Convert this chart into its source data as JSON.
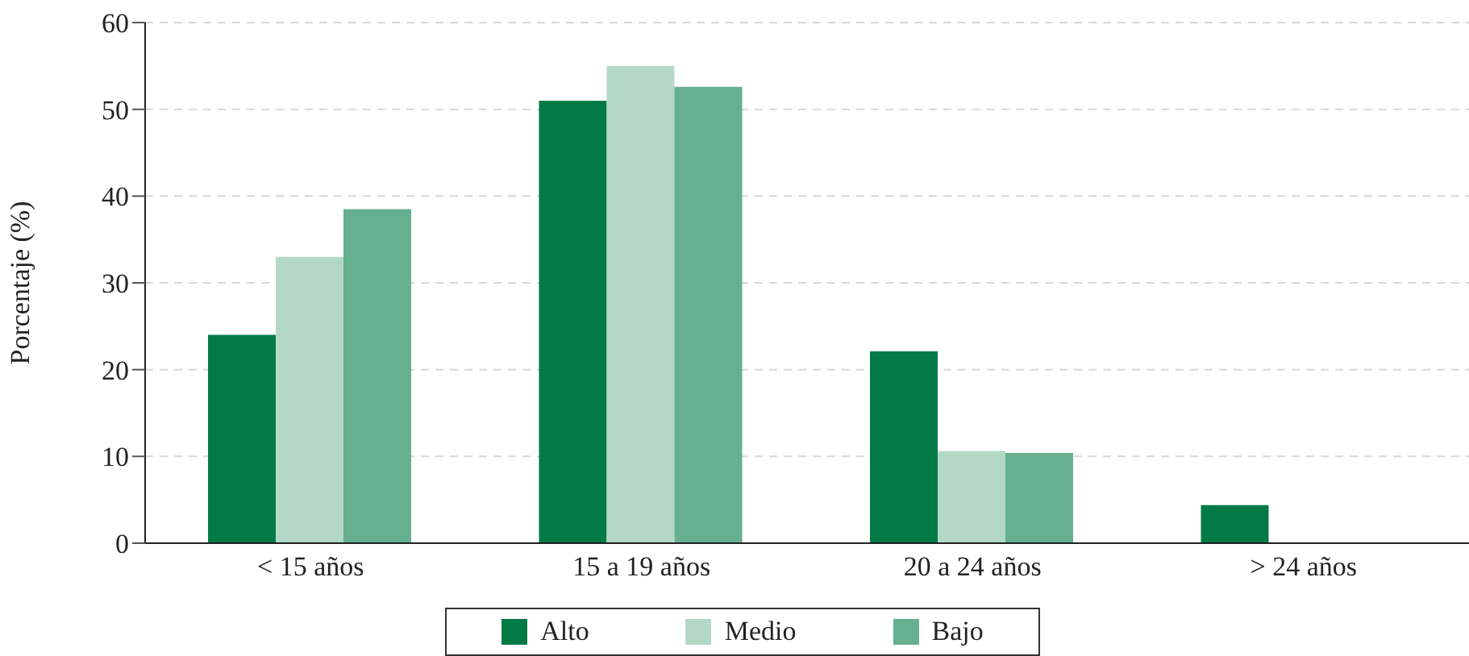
{
  "chart_data": {
    "type": "bar",
    "ylabel": "Porcentaje (%)",
    "categories": [
      "< 15 años",
      "15 a 19 años",
      "20 a 24 años",
      "> 24 años"
    ],
    "series": [
      {
        "name": "Alto",
        "color": "#027a46",
        "values": [
          24,
          51,
          22.1,
          4.4
        ]
      },
      {
        "name": "Medio",
        "color": "#b3d8c7",
        "values": [
          33,
          55,
          10.6,
          null
        ]
      },
      {
        "name": "Bajo",
        "color": "#66b08f",
        "values": [
          38.5,
          52.6,
          10.4,
          null
        ]
      }
    ],
    "ylim": [
      0,
      60
    ],
    "yticks": [
      0,
      10,
      20,
      30,
      40,
      50,
      60
    ],
    "grid": "y",
    "legend": "bottom"
  }
}
